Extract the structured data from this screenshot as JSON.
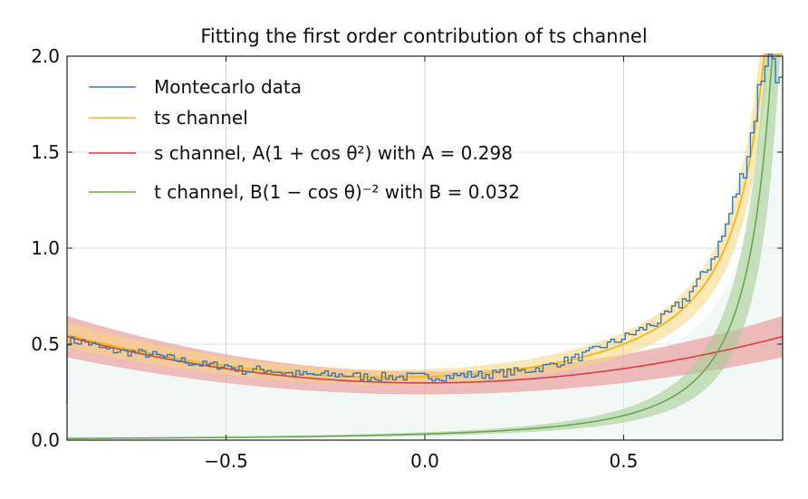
{
  "chart_data": {
    "type": "line",
    "title": "Fitting the first order contribution of ts channel",
    "xlabel": "",
    "ylabel": "",
    "xlim": [
      -0.9,
      0.9
    ],
    "ylim": [
      0.0,
      2.0
    ],
    "xticks": [
      -0.5,
      0.0,
      0.5
    ],
    "xtick_labels": [
      "−0.5",
      "0.0",
      "0.5"
    ],
    "yticks": [
      0.0,
      0.5,
      1.0,
      1.5,
      2.0
    ],
    "ytick_labels": [
      "0.0",
      "0.5",
      "1.0",
      "1.5",
      "2.0"
    ],
    "grid": true,
    "legend_position": "top-left",
    "series": [
      {
        "name": "Montecarlo data",
        "kind": "step-histogram",
        "color": "#3a78b5",
        "x": [
          -0.9,
          -0.85,
          -0.8,
          -0.75,
          -0.7,
          -0.65,
          -0.6,
          -0.55,
          -0.5,
          -0.45,
          -0.4,
          -0.35,
          -0.3,
          -0.25,
          -0.2,
          -0.15,
          -0.1,
          -0.05,
          0.0,
          0.05,
          0.1,
          0.15,
          0.2,
          0.25,
          0.3,
          0.35,
          0.4,
          0.45,
          0.5,
          0.55,
          0.6,
          0.65,
          0.7,
          0.75,
          0.8,
          0.82,
          0.84,
          0.86,
          0.88,
          0.9
        ],
        "values": [
          0.52,
          0.51,
          0.47,
          0.46,
          0.45,
          0.43,
          0.41,
          0.39,
          0.39,
          0.36,
          0.37,
          0.35,
          0.34,
          0.34,
          0.34,
          0.33,
          0.33,
          0.33,
          0.33,
          0.33,
          0.34,
          0.34,
          0.35,
          0.36,
          0.38,
          0.41,
          0.44,
          0.49,
          0.53,
          0.58,
          0.63,
          0.72,
          0.85,
          1.05,
          1.38,
          1.55,
          1.8,
          2.0,
          2.0,
          1.8
        ]
      },
      {
        "name": "ts channel",
        "kind": "line",
        "color": "#f2b816",
        "band_color": "#f7d67a"
      },
      {
        "name": "s channel, A(1 + cos θ²) with A = 0.298",
        "kind": "line",
        "color": "#d94141",
        "band_color": "#e8a0a0",
        "A": 0.298
      },
      {
        "name": "t channel, B(1 − cos θ)⁻² with B = 0.032",
        "kind": "line",
        "color": "#6aa84f",
        "band_color": "#a6cf96",
        "B": 0.032
      }
    ]
  },
  "legend": {
    "items": [
      {
        "text": "Montecarlo data"
      },
      {
        "text": "ts channel"
      },
      {
        "text": "s channel, A(1 + cos θ²) with A = 0.298"
      },
      {
        "text": "t channel, B(1 − cos θ)⁻² with B = 0.032"
      }
    ]
  }
}
